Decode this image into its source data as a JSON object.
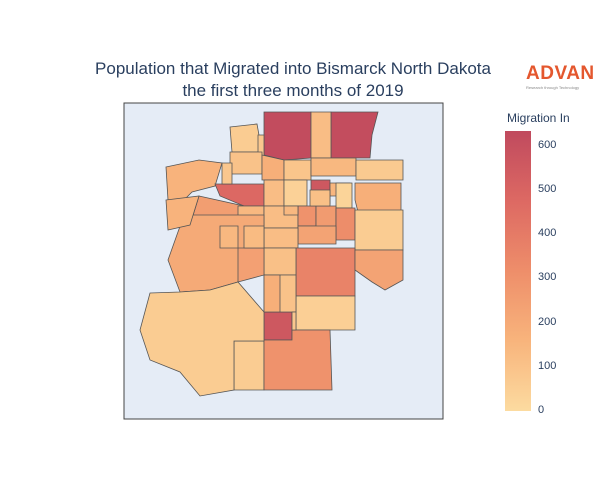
{
  "title": {
    "line1": "Population that Migrated into Bismarck North Dakota",
    "line2": "the first three months of 2019"
  },
  "logo": {
    "text": "ADVAN",
    "tagline": "Research through Technology",
    "color": "#e4572e"
  },
  "colorbar": {
    "title": "Migration In",
    "ticks": [
      "0",
      "100",
      "200",
      "300",
      "400",
      "500",
      "600"
    ],
    "range": [
      0,
      630
    ],
    "colors": [
      "#fcdba0",
      "#f8b47c",
      "#ee8e6a",
      "#dd6963",
      "#c04a5e"
    ]
  },
  "map": {
    "background": "#e5ecf6",
    "region_values": [
      620,
      615,
      120,
      60,
      80,
      100,
      160,
      180,
      480,
      90,
      140,
      70,
      180,
      120,
      560,
      150,
      250,
      40,
      140,
      30,
      120,
      300,
      260,
      320,
      230,
      60,
      120,
      200,
      360,
      110,
      240,
      230,
      560,
      50,
      100,
      60,
      300,
      60,
      80,
      160,
      140,
      80,
      140,
      180,
      110,
      130
    ]
  }
}
